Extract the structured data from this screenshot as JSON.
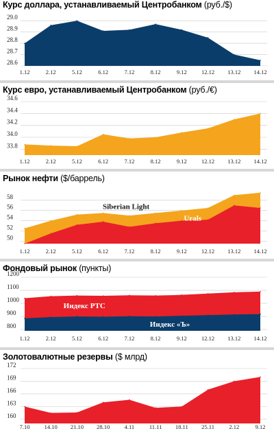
{
  "colors": {
    "navy": "#0b3d6b",
    "gold": "#f4a51d",
    "red": "#e8202a",
    "grid": "#c9c9c9",
    "separator": "#d7d7d7"
  },
  "chart_data": [
    {
      "type": "area",
      "title": "Курс доллара, устанавливаемый Центробанком",
      "unit": "(руб./$)",
      "categories": [
        "1.12",
        "2.12",
        "5.12",
        "6.12",
        "7.12",
        "8.12",
        "9.12",
        "12.12",
        "13.12",
        "14.12"
      ],
      "series": [
        {
          "name": "",
          "values": [
            28.8,
            28.96,
            29.0,
            28.91,
            28.92,
            28.97,
            28.92,
            28.85,
            28.7,
            28.65
          ]
        }
      ],
      "ylim": [
        28.6,
        29.05
      ],
      "yticks": [
        "28.6",
        "28.7",
        "28.8",
        "28.9",
        "29.0"
      ],
      "grid": true,
      "colors": [
        "#0b3d6b"
      ]
    },
    {
      "type": "area",
      "title": "Курс евро, устанавливаемый Центробанком",
      "unit": "(руб./€)",
      "categories": [
        "1.12",
        "2.12",
        "5.12",
        "6.12",
        "7.12",
        "8.12",
        "9.12",
        "12.12",
        "13.12",
        "14.12"
      ],
      "series": [
        {
          "name": "",
          "values": [
            33.88,
            33.86,
            33.85,
            34.05,
            33.98,
            34.0,
            34.08,
            34.15,
            34.3,
            34.4
          ]
        }
      ],
      "ylim": [
        33.7,
        34.6
      ],
      "yticks": [
        "33.8",
        "34.0",
        "34.2",
        "34.4",
        "34.6"
      ],
      "grid": true,
      "colors": [
        "#f4a51d"
      ]
    },
    {
      "type": "area",
      "title": "Рынок нефти",
      "unit": "($/баррель)",
      "categories": [
        "1.12",
        "2.12",
        "5.12",
        "6.12",
        "7.12",
        "8.12",
        "9.12",
        "12.12",
        "13.12",
        "14.12"
      ],
      "series": [
        {
          "name": "Siberian Light",
          "values": [
            52.5,
            54.0,
            55.2,
            55.5,
            55.0,
            55.5,
            56.0,
            56.5,
            59.0,
            59.5
          ]
        },
        {
          "name": "Urals",
          "values": [
            49.5,
            51.5,
            53.2,
            53.8,
            52.8,
            53.5,
            54.0,
            54.2,
            57.0,
            56.5
          ]
        }
      ],
      "ylim": [
        49.5,
        60
      ],
      "yticks": [
        "50",
        "52",
        "54",
        "56",
        "58"
      ],
      "grid": true,
      "colors": [
        "#f4a51d",
        "#e8202a"
      ]
    },
    {
      "type": "area",
      "title": "Фондовый рынок",
      "unit": "(пункты)",
      "categories": [
        "1.12",
        "2.12",
        "5.12",
        "6.12",
        "7.12",
        "8.12",
        "9.12",
        "12.12",
        "13.12",
        "14.12"
      ],
      "series": [
        {
          "name": "Индекс РТС",
          "values": [
            1040,
            1055,
            1060,
            1058,
            1062,
            1060,
            1065,
            1075,
            1085,
            1090
          ]
        },
        {
          "name": "Индекс «Ъ»",
          "values": [
            885,
            895,
            900,
            898,
            902,
            900,
            905,
            910,
            915,
            918
          ]
        }
      ],
      "ylim": [
        790,
        1200
      ],
      "yticks": [
        "800",
        "900",
        "1000",
        "1100",
        "1200"
      ],
      "grid": true,
      "colors": [
        "#e8202a",
        "#0b3d6b"
      ]
    },
    {
      "type": "area",
      "title": "Золотовалютные резервы",
      "unit": "($ млрд)",
      "categories": [
        "7.10",
        "14.10",
        "21.10",
        "28.10",
        "4.11",
        "11.11",
        "18.11",
        "25.11",
        "2.12",
        "9.12"
      ],
      "series": [
        {
          "name": "",
          "values": [
            163.0,
            161.5,
            161.6,
            164.0,
            164.6,
            162.7,
            163.0,
            167.0,
            169.0,
            170.0
          ]
        }
      ],
      "ylim": [
        159,
        172
      ],
      "yticks": [
        "160",
        "163",
        "166",
        "169",
        "172"
      ],
      "grid": true,
      "colors": [
        "#e8202a"
      ]
    }
  ]
}
